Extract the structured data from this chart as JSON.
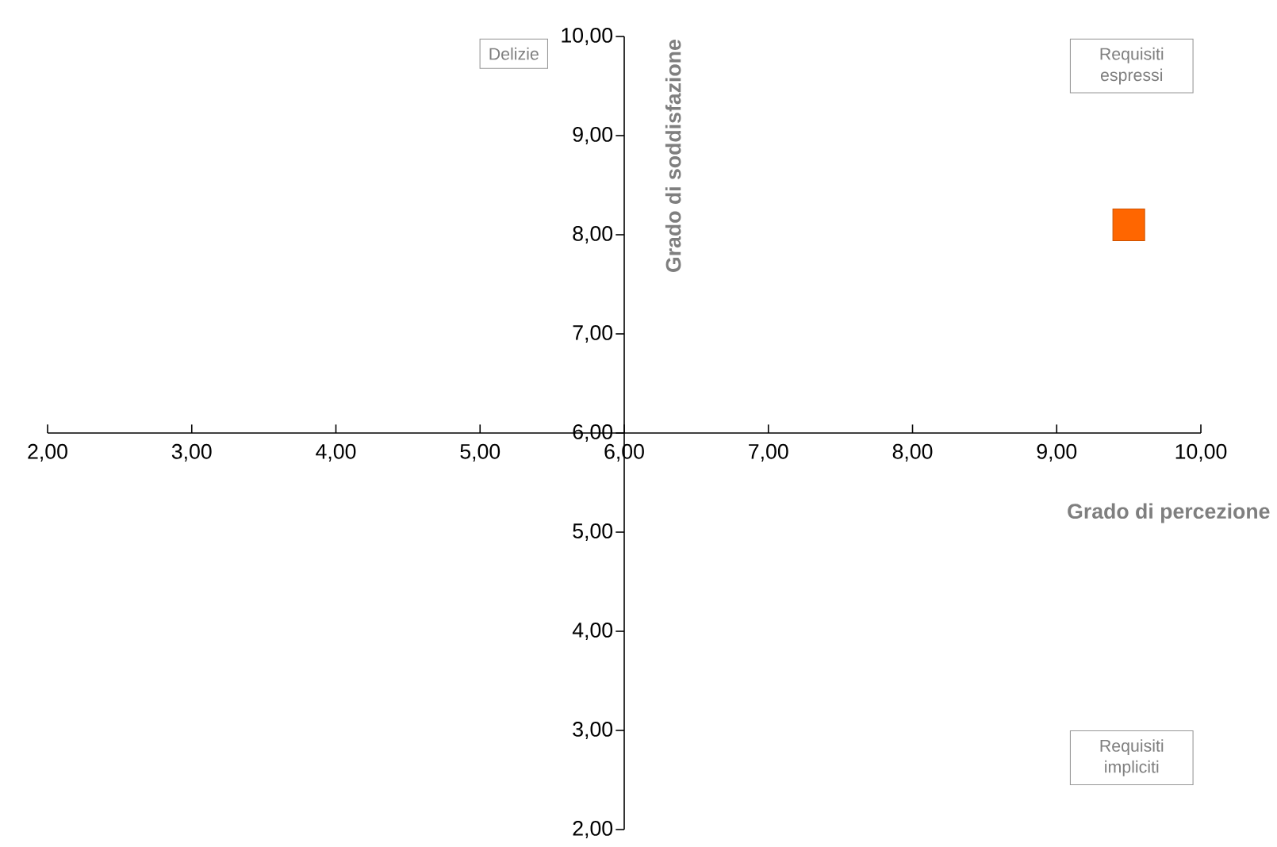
{
  "chart_data": {
    "type": "scatter",
    "xlabel": "Grado di percezione",
    "ylabel": "Grado di soddisfazione",
    "x": [
      9.5
    ],
    "series": [
      {
        "color": "#ff6600",
        "values": [
          8.1
        ]
      }
    ],
    "marker": "square",
    "xlim": [
      2,
      10
    ],
    "ylim": [
      2,
      10
    ],
    "xticks": [
      {
        "value": 2,
        "label": "2,00"
      },
      {
        "value": 3,
        "label": "3,00"
      },
      {
        "value": 4,
        "label": "4,00"
      },
      {
        "value": 5,
        "label": "5,00"
      },
      {
        "value": 6,
        "label": "6,00"
      },
      {
        "value": 7,
        "label": "7,00"
      },
      {
        "value": 8,
        "label": "8,00"
      },
      {
        "value": 9,
        "label": "9,00"
      },
      {
        "value": 10,
        "label": "10,00"
      }
    ],
    "yticks": [
      {
        "value": 2,
        "label": "2,00"
      },
      {
        "value": 3,
        "label": "3,00"
      },
      {
        "value": 4,
        "label": "4,00"
      },
      {
        "value": 5,
        "label": "5,00"
      },
      {
        "value": 6,
        "label": "6,00"
      },
      {
        "value": 7,
        "label": "7,00"
      },
      {
        "value": 8,
        "label": "8,00"
      },
      {
        "value": 9,
        "label": "9,00"
      },
      {
        "value": 10,
        "label": "10,00"
      }
    ],
    "annotations": [
      "Delizie",
      "Requisiti espressi",
      "Requisiti impliciti"
    ]
  }
}
